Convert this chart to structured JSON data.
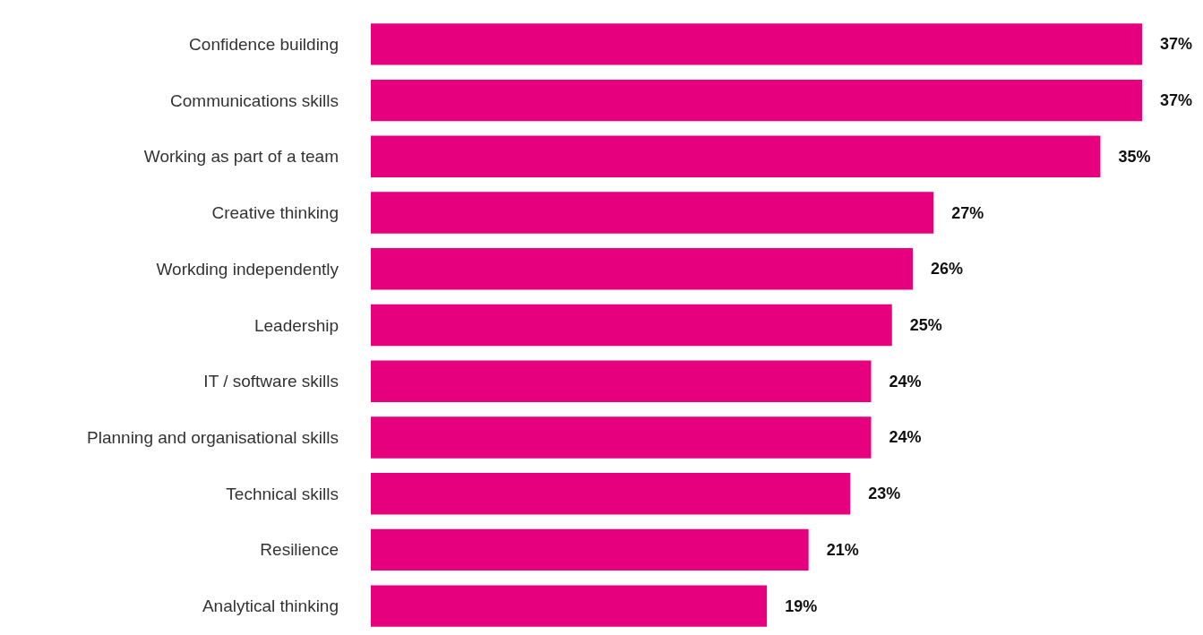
{
  "chart_data": {
    "type": "bar",
    "orientation": "horizontal",
    "categories": [
      "Confidence building",
      "Communications skills",
      "Working as part of a team",
      "Creative thinking",
      "Workding independently",
      "Leadership",
      "IT / software skills",
      "Planning and organisational skills",
      "Technical skills",
      "Resilience",
      "Analytical thinking"
    ],
    "values": [
      37,
      37,
      35,
      27,
      26,
      25,
      24,
      24,
      23,
      21,
      19
    ],
    "value_labels": [
      "37%",
      "37%",
      "35%",
      "27%",
      "26%",
      "25%",
      "24%",
      "24%",
      "23%",
      "21%",
      "19%"
    ],
    "color": "#e6007e"
  }
}
